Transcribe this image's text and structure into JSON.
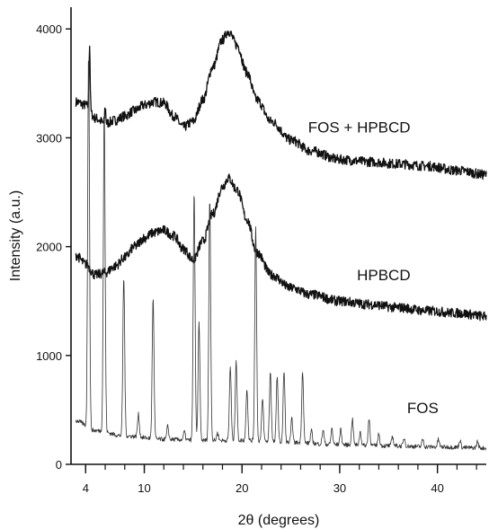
{
  "chart_data": {
    "type": "line",
    "title": "",
    "xlabel": "2θ (degrees)",
    "ylabel": "Intensity (a.u.)",
    "xlim": [
      2.5,
      45
    ],
    "ylim": [
      0,
      4200
    ],
    "x_ticks": [
      4,
      10,
      20,
      30,
      40
    ],
    "y_ticks": [
      0,
      1000,
      2000,
      3000,
      4000
    ],
    "grid": false,
    "legend": "none",
    "series": [
      {
        "name": "FOS + HPBCD",
        "color": "#111111",
        "points": [
          [
            3,
            3330
          ],
          [
            4,
            3300
          ],
          [
            5,
            3180
          ],
          [
            6,
            3130
          ],
          [
            7,
            3160
          ],
          [
            8,
            3200
          ],
          [
            9,
            3250
          ],
          [
            10,
            3300
          ],
          [
            11,
            3330
          ],
          [
            12,
            3320
          ],
          [
            13,
            3200
          ],
          [
            14,
            3100
          ],
          [
            15,
            3150
          ],
          [
            16,
            3350
          ],
          [
            17,
            3650
          ],
          [
            18,
            3900
          ],
          [
            18.6,
            3980
          ],
          [
            19.5,
            3850
          ],
          [
            20.5,
            3600
          ],
          [
            21.5,
            3350
          ],
          [
            23,
            3150
          ],
          [
            25,
            2980
          ],
          [
            27,
            2880
          ],
          [
            30,
            2800
          ],
          [
            33,
            2780
          ],
          [
            36,
            2760
          ],
          [
            39,
            2740
          ],
          [
            42,
            2700
          ],
          [
            45,
            2660
          ]
        ],
        "spikes": [
          [
            4.4,
            3860
          ],
          [
            6,
            3290
          ]
        ]
      },
      {
        "name": "HPBCD",
        "color": "#111111",
        "points": [
          [
            3,
            1920
          ],
          [
            4,
            1840
          ],
          [
            5,
            1740
          ],
          [
            6,
            1760
          ],
          [
            7,
            1820
          ],
          [
            8,
            1900
          ],
          [
            9,
            2000
          ],
          [
            10,
            2080
          ],
          [
            11,
            2130
          ],
          [
            12,
            2150
          ],
          [
            13,
            2100
          ],
          [
            14,
            1980
          ],
          [
            15,
            1880
          ],
          [
            16,
            2050
          ],
          [
            17,
            2300
          ],
          [
            18,
            2550
          ],
          [
            18.6,
            2630
          ],
          [
            19.5,
            2520
          ],
          [
            20.5,
            2250
          ],
          [
            21.5,
            1950
          ],
          [
            23,
            1740
          ],
          [
            25,
            1620
          ],
          [
            27,
            1560
          ],
          [
            30,
            1500
          ],
          [
            33,
            1470
          ],
          [
            36,
            1440
          ],
          [
            39,
            1410
          ],
          [
            42,
            1390
          ],
          [
            45,
            1360
          ]
        ]
      },
      {
        "name": "FOS",
        "color": "#333333",
        "baseline": [
          [
            3,
            400
          ],
          [
            5,
            310
          ],
          [
            8,
            260
          ],
          [
            12,
            230
          ],
          [
            16,
            220
          ],
          [
            20,
            220
          ],
          [
            25,
            200
          ],
          [
            30,
            180
          ],
          [
            35,
            170
          ],
          [
            40,
            160
          ],
          [
            45,
            150
          ]
        ],
        "peaks": [
          [
            4.3,
            3800
          ],
          [
            5.9,
            3250
          ],
          [
            7.9,
            1720
          ],
          [
            9.4,
            460
          ],
          [
            10.9,
            1530
          ],
          [
            12.4,
            350
          ],
          [
            14.1,
            300
          ],
          [
            15.1,
            2500
          ],
          [
            15.6,
            1300
          ],
          [
            16.7,
            2450
          ],
          [
            17.5,
            290
          ],
          [
            18.8,
            900
          ],
          [
            19.4,
            960
          ],
          [
            20.5,
            700
          ],
          [
            21.4,
            2180
          ],
          [
            22.1,
            600
          ],
          [
            22.9,
            850
          ],
          [
            23.6,
            820
          ],
          [
            24.3,
            860
          ],
          [
            25.1,
            420
          ],
          [
            26.2,
            860
          ],
          [
            27.1,
            310
          ],
          [
            28.3,
            320
          ],
          [
            29.2,
            330
          ],
          [
            30.1,
            320
          ],
          [
            31.3,
            420
          ],
          [
            32.1,
            300
          ],
          [
            33.0,
            420
          ],
          [
            34.0,
            280
          ],
          [
            35.4,
            260
          ],
          [
            36.6,
            240
          ],
          [
            38.5,
            230
          ],
          [
            40.1,
            230
          ],
          [
            42.3,
            220
          ],
          [
            44.1,
            210
          ]
        ]
      }
    ],
    "annotations": [
      {
        "text": "FOS + HPBCD",
        "x": 32,
        "y": 3050
      },
      {
        "text": "HPBCD",
        "x": 34.5,
        "y": 1690
      },
      {
        "text": "FOS",
        "x": 38.5,
        "y": 470
      }
    ]
  }
}
